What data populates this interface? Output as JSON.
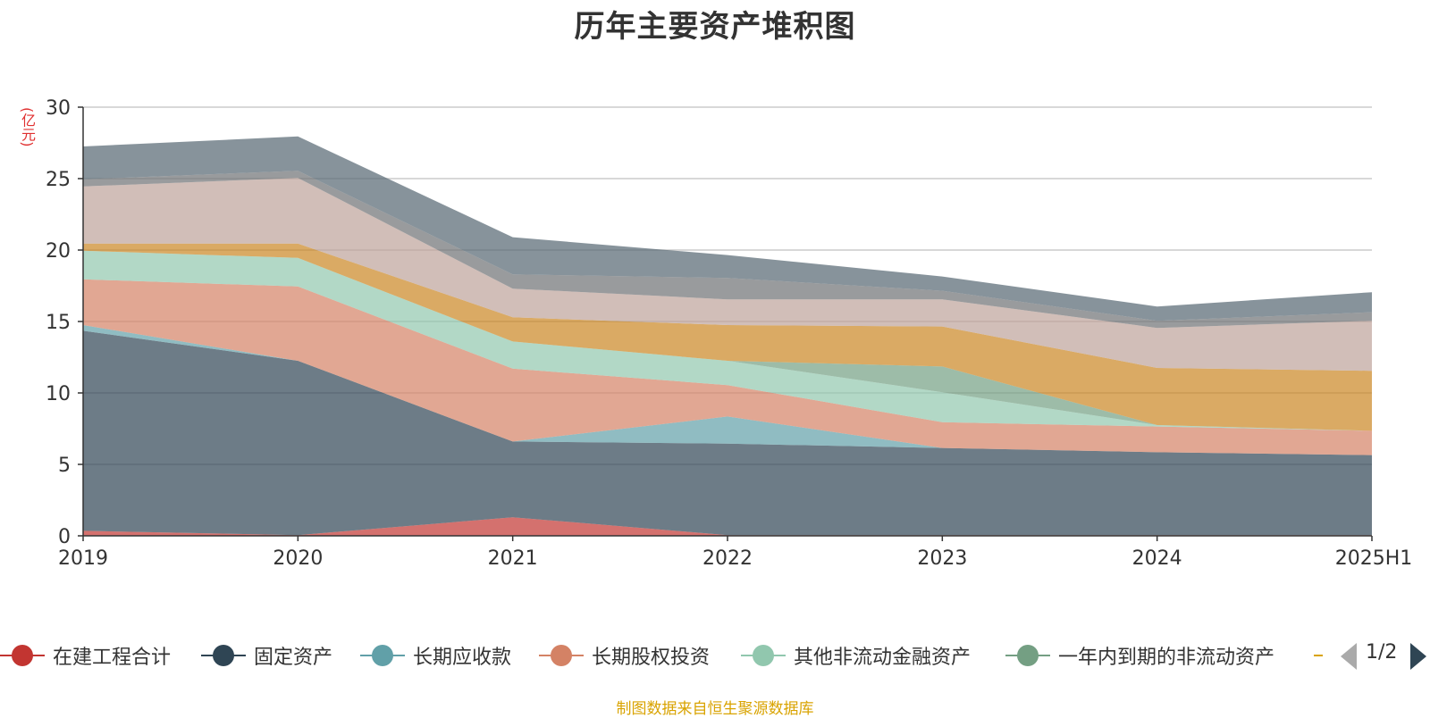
{
  "chart_data": {
    "type": "area",
    "stacked": true,
    "title": "历年主要资产堆积图",
    "ylabel": "(亿元)",
    "categories": [
      "2019",
      "2020",
      "2021",
      "2022",
      "2023",
      "2024",
      "2025H1"
    ],
    "ylim": [
      0,
      30
    ],
    "yticks": [
      0,
      5,
      10,
      15,
      20,
      25,
      30
    ],
    "grid": true,
    "series": [
      {
        "name": "在建工程合计",
        "color": "#c23531",
        "values": [
          0.35,
          0.05,
          1.3,
          0.05,
          0.05,
          0.05,
          0.05
        ]
      },
      {
        "name": "固定资产",
        "color": "#2f4554",
        "values": [
          14.0,
          12.2,
          5.3,
          6.4,
          6.1,
          5.8,
          5.6
        ]
      },
      {
        "name": "长期应收款",
        "color": "#61a0a8",
        "values": [
          0.4,
          0.0,
          0.0,
          1.9,
          0.0,
          0.0,
          0.0
        ]
      },
      {
        "name": "长期股权投资",
        "color": "#d48265",
        "values": [
          3.2,
          5.2,
          5.1,
          2.2,
          1.8,
          1.8,
          1.7
        ]
      },
      {
        "name": "其他非流动金融资产",
        "color": "#91c7ae",
        "values": [
          2.0,
          2.0,
          1.9,
          1.7,
          2.1,
          0.1,
          0.0
        ]
      },
      {
        "name": "一年内到期的非流动资产",
        "color": "#749f83",
        "values": [
          0.0,
          0.0,
          0.0,
          0.0,
          1.8,
          0.0,
          0.0
        ]
      },
      {
        "color": "#ca8622",
        "values": [
          0.5,
          1.0,
          1.7,
          2.5,
          2.8,
          4.0,
          4.2
        ]
      },
      {
        "color": "#bda29a",
        "values": [
          4.0,
          4.6,
          2.0,
          1.8,
          1.9,
          2.8,
          3.5
        ]
      },
      {
        "color": "#6e7074",
        "values": [
          0.5,
          0.5,
          1.0,
          1.5,
          0.6,
          0.5,
          0.6
        ]
      },
      {
        "color": "#546570",
        "values": [
          2.3,
          2.4,
          2.6,
          1.6,
          1.0,
          1.0,
          1.4
        ]
      }
    ]
  },
  "legend": {
    "items": [
      {
        "label": "在建工程合计",
        "color": "#c23531"
      },
      {
        "label": "固定资产",
        "color": "#2f4554"
      },
      {
        "label": "长期应收款",
        "color": "#61a0a8"
      },
      {
        "label": "长期股权投资",
        "color": "#d48265"
      },
      {
        "label": "其他非流动金融资产",
        "color": "#91c7ae"
      },
      {
        "label": "一年内到期的非流动资产",
        "color": "#749f83"
      }
    ],
    "page": "1/2"
  },
  "source_note": "制图数据来自恒生聚源数据库"
}
